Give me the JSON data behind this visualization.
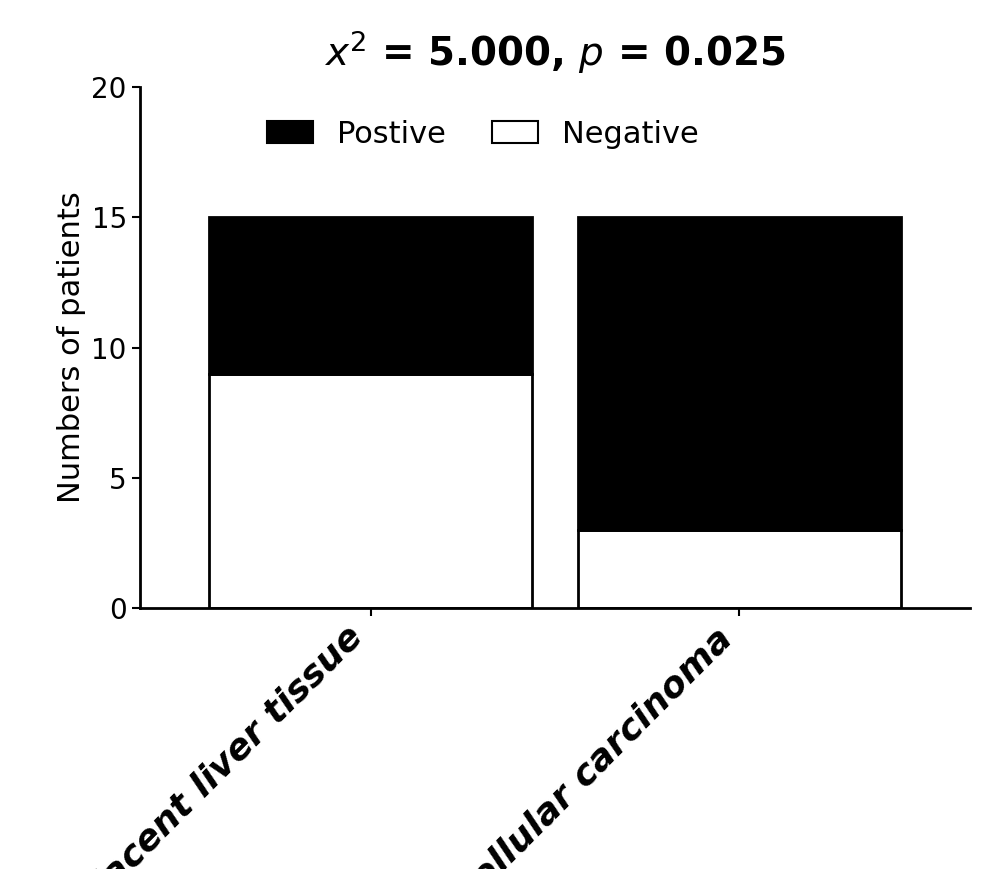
{
  "categories": [
    "Adjacent liver tissue",
    "Hepatocellular carcinoma"
  ],
  "negative_values": [
    9,
    3
  ],
  "positive_values": [
    6,
    12
  ],
  "bar_width": 0.35,
  "bar_colors_negative": "#ffffff",
  "bar_colors_positive": "#000000",
  "bar_edge_color": "#000000",
  "ylim": [
    0,
    20
  ],
  "yticks": [
    0,
    5,
    10,
    15,
    20
  ],
  "ylabel": "Numbers of patients",
  "title": "$\\mathit{x}^2$ = 5.000, $\\mathit{p}$ = 0.025",
  "legend_positive_label": "Postive",
  "legend_negative_label": "Negative",
  "title_fontsize": 28,
  "ylabel_fontsize": 22,
  "tick_fontsize": 20,
  "xtick_fontsize": 26,
  "legend_fontsize": 22,
  "background_color": "#ffffff",
  "bar_positions": [
    0.3,
    0.7
  ]
}
